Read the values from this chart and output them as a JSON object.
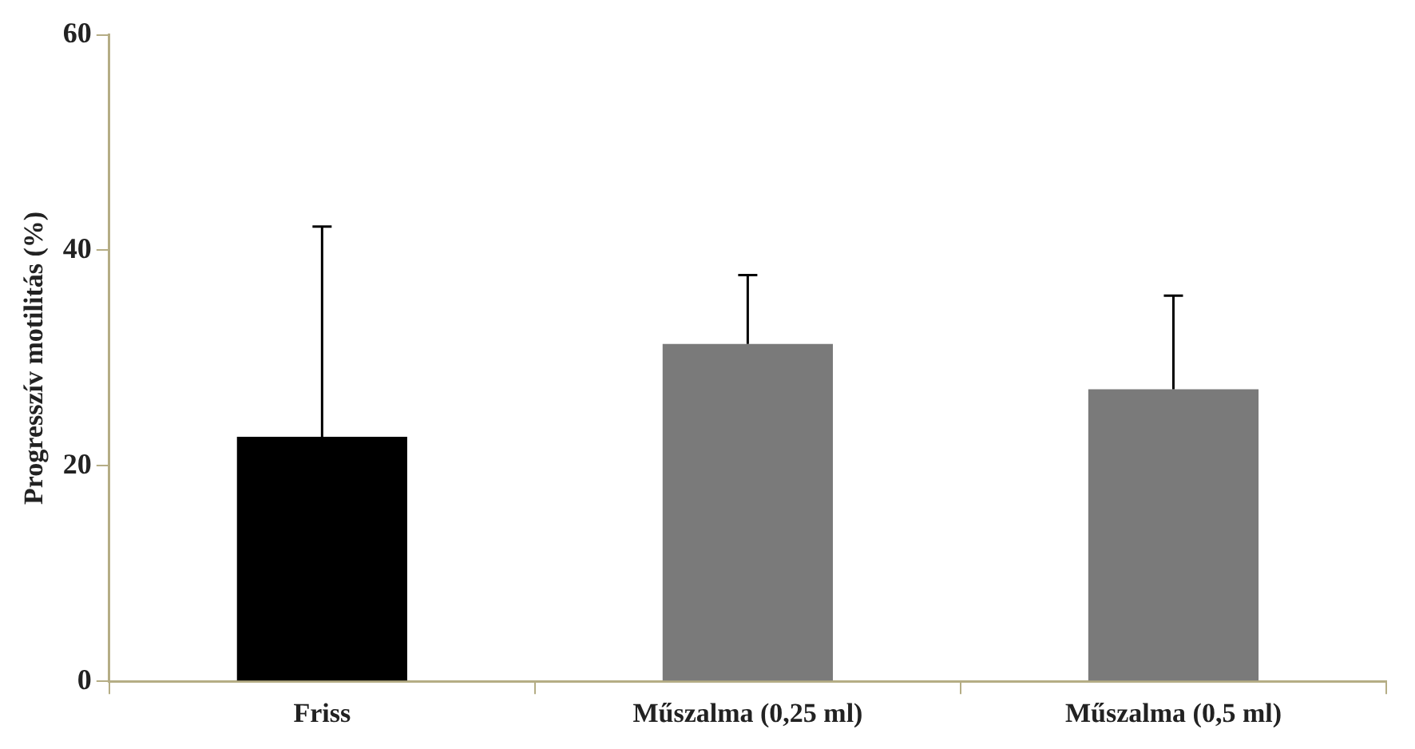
{
  "chart_data": {
    "type": "bar",
    "ylabel": "Progresszív motilitás (%)",
    "categories": [
      "Friss",
      "Műszalma (0,25 ml)",
      "Műszalma (0,5 ml)"
    ],
    "values": [
      22.7,
      31.3,
      27.1
    ],
    "colors": [
      "#000000",
      "#7a7a7a",
      "#7a7a7a"
    ],
    "errors": [
      [
        22.7,
        42.2
      ],
      [
        31.3,
        37.7
      ],
      [
        27.1,
        35.8
      ]
    ],
    "ylim": [
      0,
      60
    ],
    "yticks": [
      0,
      20,
      40,
      60
    ],
    "grid": false,
    "legend": false
  }
}
